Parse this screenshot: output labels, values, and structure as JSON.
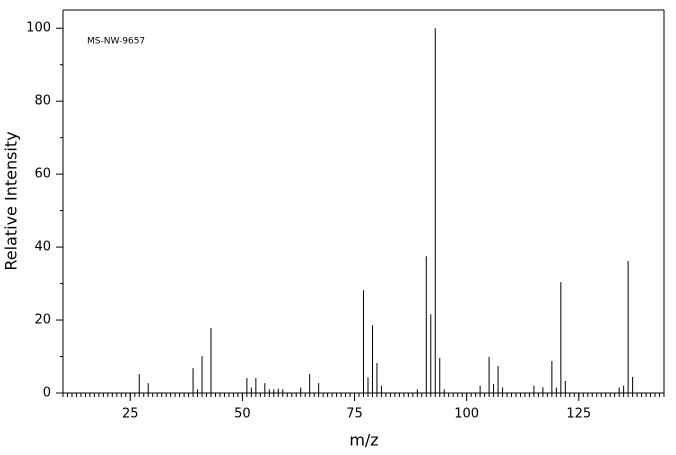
{
  "chart_data": {
    "type": "bar",
    "annotation": "MS-NW-9657",
    "xlabel": "m/z",
    "ylabel": "Relative Intensity",
    "x": [
      27,
      29,
      39,
      40,
      41,
      43,
      51,
      52,
      53,
      55,
      56,
      57,
      58,
      59,
      63,
      65,
      67,
      77,
      78,
      79,
      80,
      81,
      89,
      91,
      92,
      93,
      94,
      95,
      103,
      105,
      106,
      107,
      108,
      115,
      117,
      119,
      120,
      121,
      122,
      134,
      135,
      136,
      137
    ],
    "values": [
      5.2,
      2.7,
      6.8,
      1,
      10.1,
      17.8,
      4.1,
      1.5,
      4.1,
      2.7,
      1,
      1,
      1.2,
      1,
      1.5,
      5.2,
      2.7,
      28.2,
      4.3,
      18.6,
      8.2,
      2,
      1,
      37.5,
      21.6,
      100,
      9.6,
      1,
      2,
      9.9,
      2.5,
      7.4,
      1.5,
      2,
      1.6,
      8.8,
      1.5,
      30.4,
      3.3,
      1.5,
      2,
      36.2,
      4.4
    ],
    "color": "#000000",
    "xlim": [
      10,
      144
    ],
    "xticks": [
      25,
      50,
      75,
      100,
      125
    ],
    "ylim": [
      0,
      105
    ],
    "yticks": [
      0,
      20,
      40,
      60,
      80,
      100
    ]
  }
}
